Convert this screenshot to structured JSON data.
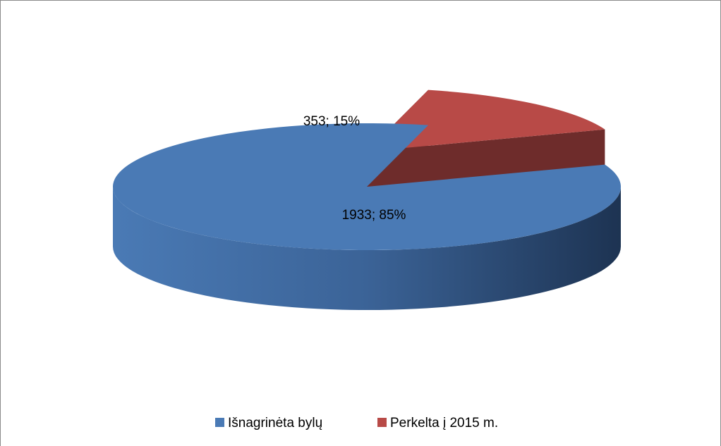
{
  "chart_data": {
    "type": "pie3d",
    "categories": [
      "Išnagrinėta bylų",
      "Perkelta į 2015 m."
    ],
    "values": [
      1933,
      353
    ],
    "value_labels": [
      "1933; 85%",
      "353; 15%"
    ],
    "colors": [
      "#4a7ab5",
      "#b84a47"
    ],
    "legend": "bottom"
  }
}
